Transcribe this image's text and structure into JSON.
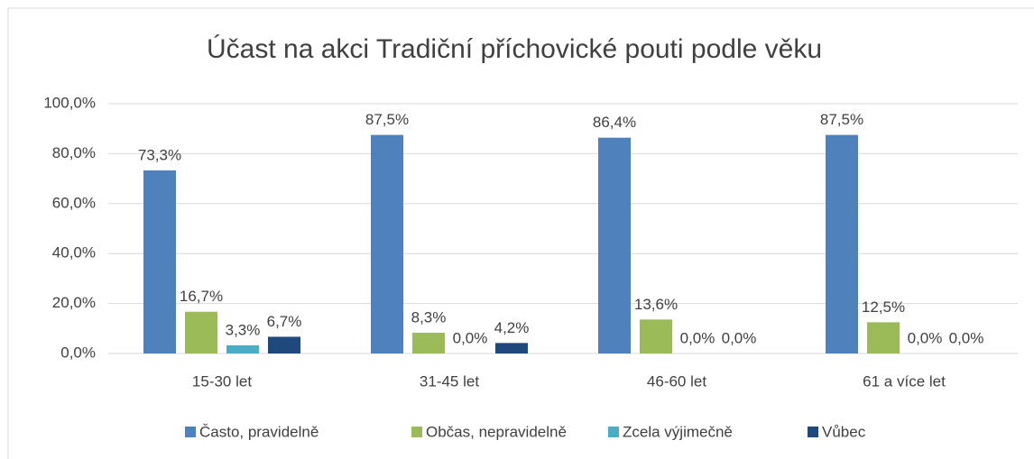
{
  "chart_data": {
    "type": "bar",
    "title": "Účast na akci Tradiční příchovické pouti podle věku",
    "categories": [
      "15-30 let",
      "31-45 let",
      "46-60 let",
      "61 a více let"
    ],
    "series": [
      {
        "name": "Často, pravidelně",
        "color": "#4f81bd",
        "values": [
          73.3,
          87.5,
          86.4,
          87.5
        ],
        "value_labels": [
          "73,3%",
          "87,5%",
          "86,4%",
          "87,5%"
        ]
      },
      {
        "name": "Občas, nepravidelně",
        "color": "#9bbb59",
        "values": [
          16.7,
          8.3,
          13.6,
          12.5
        ],
        "value_labels": [
          "16,7%",
          "8,3%",
          "13,6%",
          "12,5%"
        ]
      },
      {
        "name": "Zcela výjimečně",
        "color": "#4bacc6",
        "values": [
          3.3,
          0,
          0,
          0
        ],
        "value_labels": [
          "3,3%",
          "0,0%",
          "0,0%",
          "0,0%"
        ]
      },
      {
        "name": "Vůbec",
        "color": "#1f497d",
        "values": [
          6.7,
          4.2,
          0,
          0
        ],
        "value_labels": [
          "6,7%",
          "4,2%",
          "0,0%",
          "0,0%"
        ]
      }
    ],
    "ylim": [
      0,
      100
    ],
    "yticks": [
      {
        "value": 0,
        "label": "0,0%"
      },
      {
        "value": 20,
        "label": "20,0%"
      },
      {
        "value": 40,
        "label": "40,0%"
      },
      {
        "value": 60,
        "label": "60,0%"
      },
      {
        "value": 80,
        "label": "80,0%"
      },
      {
        "value": 100,
        "label": "100,0%"
      }
    ],
    "grid": true,
    "legend": "bottom"
  }
}
